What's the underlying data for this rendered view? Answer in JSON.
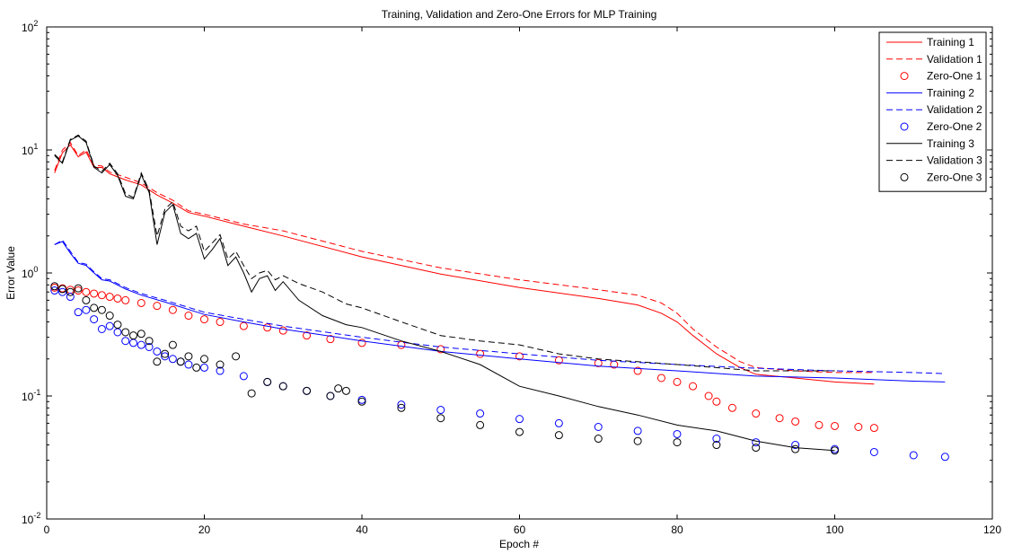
{
  "chart_data": {
    "type": "line",
    "title": "Training, Validation and Zero-One Errors for MLP Training",
    "xlabel": "Epoch #",
    "ylabel": "Error Value",
    "xlim": [
      0,
      120
    ],
    "ylim": [
      0.01,
      100
    ],
    "yscale": "log",
    "grid": false,
    "legend_position": "top-right",
    "x_ticks": [
      {
        "value": 0,
        "label": "0"
      },
      {
        "value": 20,
        "label": "20"
      },
      {
        "value": 40,
        "label": "40"
      },
      {
        "value": 60,
        "label": "60"
      },
      {
        "value": 80,
        "label": "80"
      },
      {
        "value": 100,
        "label": "100"
      },
      {
        "value": 120,
        "label": "120"
      }
    ],
    "y_ticks": [
      {
        "value": 0.01,
        "base": "10",
        "exp": "-2"
      },
      {
        "value": 0.1,
        "base": "10",
        "exp": "-1"
      },
      {
        "value": 1,
        "base": "10",
        "exp": "0"
      },
      {
        "value": 10,
        "base": "10",
        "exp": "1"
      },
      {
        "value": 100,
        "base": "10",
        "exp": "2"
      }
    ],
    "series": [
      {
        "name": "Training 1",
        "style": "solid",
        "color": "#ff0000",
        "x": [
          1,
          2,
          3,
          4,
          5,
          6,
          7,
          8,
          10,
          12,
          14,
          16,
          18,
          20,
          25,
          30,
          40,
          50,
          60,
          70,
          75,
          78,
          80,
          82,
          85,
          88,
          90,
          95,
          100,
          105
        ],
        "y": [
          6.5,
          9.5,
          11,
          8.8,
          9.6,
          7.2,
          7.2,
          6.4,
          5.7,
          5.2,
          4.3,
          3.7,
          3.1,
          2.9,
          2.4,
          2.0,
          1.35,
          0.98,
          0.76,
          0.62,
          0.55,
          0.47,
          0.4,
          0.31,
          0.22,
          0.17,
          0.15,
          0.14,
          0.13,
          0.125
        ]
      },
      {
        "name": "Validation 1",
        "style": "dashed",
        "color": "#ff0000",
        "x": [
          1,
          2,
          3,
          4,
          5,
          6,
          7,
          8,
          10,
          12,
          14,
          16,
          18,
          20,
          25,
          30,
          40,
          50,
          60,
          70,
          75,
          78,
          80,
          82,
          85,
          88,
          90,
          95,
          100,
          105
        ],
        "y": [
          6.8,
          10,
          11.5,
          9,
          10,
          7.5,
          7.4,
          6.6,
          6.0,
          5.4,
          4.5,
          3.9,
          3.2,
          3.0,
          2.5,
          2.2,
          1.5,
          1.1,
          0.88,
          0.73,
          0.66,
          0.57,
          0.47,
          0.35,
          0.25,
          0.19,
          0.17,
          0.16,
          0.155,
          0.155
        ]
      },
      {
        "name": "Zero-One 1",
        "style": "markers",
        "color": "#ff0000",
        "x": [
          1,
          2,
          3,
          4,
          5,
          6,
          7,
          8,
          9,
          10,
          12,
          14,
          16,
          18,
          20,
          22,
          25,
          28,
          30,
          33,
          36,
          40,
          45,
          50,
          55,
          60,
          65,
          70,
          72,
          75,
          78,
          80,
          82,
          84,
          85,
          87,
          90,
          93,
          95,
          98,
          100,
          103,
          105
        ],
        "y": [
          0.76,
          0.75,
          0.73,
          0.72,
          0.7,
          0.68,
          0.66,
          0.64,
          0.62,
          0.6,
          0.57,
          0.54,
          0.5,
          0.45,
          0.42,
          0.4,
          0.37,
          0.36,
          0.34,
          0.31,
          0.29,
          0.27,
          0.26,
          0.24,
          0.22,
          0.21,
          0.195,
          0.185,
          0.18,
          0.16,
          0.14,
          0.13,
          0.12,
          0.1,
          0.09,
          0.08,
          0.072,
          0.066,
          0.062,
          0.058,
          0.057,
          0.056,
          0.055
        ]
      },
      {
        "name": "Training 2",
        "style": "solid",
        "color": "#0000ff",
        "x": [
          1,
          2,
          3,
          4,
          5,
          6,
          7,
          8,
          10,
          12,
          15,
          20,
          25,
          30,
          40,
          50,
          60,
          70,
          80,
          90,
          100,
          110,
          114
        ],
        "y": [
          1.7,
          1.8,
          1.45,
          1.2,
          1.15,
          1.0,
          0.88,
          0.86,
          0.74,
          0.66,
          0.58,
          0.46,
          0.4,
          0.35,
          0.28,
          0.23,
          0.2,
          0.175,
          0.16,
          0.145,
          0.14,
          0.132,
          0.13
        ]
      },
      {
        "name": "Validation 2",
        "style": "dashed",
        "color": "#0000ff",
        "x": [
          1,
          2,
          3,
          4,
          5,
          6,
          7,
          8,
          10,
          12,
          15,
          20,
          25,
          30,
          40,
          50,
          60,
          70,
          80,
          90,
          100,
          110,
          114
        ],
        "y": [
          1.7,
          1.85,
          1.5,
          1.22,
          1.18,
          1.02,
          0.9,
          0.88,
          0.76,
          0.68,
          0.6,
          0.48,
          0.42,
          0.37,
          0.3,
          0.25,
          0.22,
          0.195,
          0.18,
          0.168,
          0.16,
          0.155,
          0.152
        ]
      },
      {
        "name": "Zero-One 2",
        "style": "markers",
        "color": "#0000ff",
        "x": [
          1,
          2,
          3,
          4,
          5,
          6,
          7,
          8,
          9,
          10,
          11,
          12,
          13,
          14,
          15,
          16,
          17,
          18,
          20,
          22,
          25,
          28,
          30,
          33,
          36,
          40,
          45,
          50,
          55,
          60,
          65,
          70,
          75,
          80,
          85,
          90,
          95,
          100,
          105,
          110,
          114
        ],
        "y": [
          0.72,
          0.7,
          0.64,
          0.48,
          0.5,
          0.42,
          0.35,
          0.37,
          0.33,
          0.28,
          0.27,
          0.26,
          0.25,
          0.23,
          0.21,
          0.2,
          0.19,
          0.18,
          0.17,
          0.16,
          0.145,
          0.13,
          0.12,
          0.11,
          0.1,
          0.093,
          0.085,
          0.077,
          0.072,
          0.065,
          0.06,
          0.056,
          0.052,
          0.049,
          0.045,
          0.042,
          0.04,
          0.037,
          0.035,
          0.033,
          0.032
        ]
      },
      {
        "name": "Training 3",
        "style": "solid",
        "color": "#000000",
        "x": [
          1,
          2,
          3,
          4,
          5,
          6,
          7,
          8,
          9,
          10,
          11,
          12,
          13,
          14,
          15,
          16,
          17,
          18,
          19,
          20,
          21,
          22,
          23,
          24,
          25,
          26,
          27,
          28,
          29,
          30,
          32,
          35,
          38,
          40,
          45,
          50,
          55,
          60,
          65,
          70,
          75,
          80,
          85,
          90,
          95,
          100
        ],
        "y": [
          9,
          7.8,
          12,
          13,
          11.5,
          7.2,
          6.5,
          7.6,
          6.2,
          4.2,
          4.0,
          6.3,
          4.5,
          1.7,
          3.1,
          3.6,
          2.1,
          1.9,
          2.1,
          1.3,
          1.55,
          1.9,
          1.15,
          1.35,
          1.0,
          0.7,
          0.9,
          0.95,
          0.72,
          0.85,
          0.6,
          0.45,
          0.38,
          0.36,
          0.28,
          0.23,
          0.18,
          0.12,
          0.1,
          0.082,
          0.07,
          0.058,
          0.052,
          0.043,
          0.038,
          0.036
        ]
      },
      {
        "name": "Validation 3",
        "style": "dashed",
        "color": "#000000",
        "x": [
          1,
          2,
          3,
          4,
          5,
          6,
          7,
          8,
          9,
          10,
          11,
          12,
          13,
          14,
          15,
          16,
          17,
          18,
          19,
          20,
          21,
          22,
          23,
          24,
          25,
          26,
          27,
          28,
          29,
          30,
          32,
          35,
          38,
          40,
          45,
          50,
          55,
          60,
          65,
          70,
          75,
          80,
          85,
          90,
          95,
          100
        ],
        "y": [
          9.2,
          8,
          12.2,
          13.2,
          11.8,
          7.4,
          6.7,
          7.8,
          6.4,
          4.4,
          4.1,
          6.5,
          4.7,
          2.0,
          3.3,
          3.8,
          2.4,
          2.2,
          2.4,
          1.5,
          1.75,
          2.05,
          1.3,
          1.5,
          1.15,
          0.9,
          1.0,
          1.05,
          0.88,
          0.95,
          0.82,
          0.7,
          0.56,
          0.52,
          0.4,
          0.31,
          0.28,
          0.26,
          0.22,
          0.2,
          0.19,
          0.18,
          0.17,
          0.16,
          0.16,
          0.16
        ]
      },
      {
        "name": "Zero-One 3",
        "style": "markers",
        "color": "#000000",
        "x": [
          1,
          2,
          3,
          4,
          5,
          6,
          7,
          8,
          9,
          10,
          11,
          12,
          13,
          14,
          15,
          16,
          17,
          18,
          19,
          20,
          22,
          24,
          26,
          28,
          30,
          33,
          36,
          37,
          38,
          40,
          45,
          50,
          55,
          60,
          65,
          70,
          75,
          80,
          85,
          90,
          95,
          100
        ],
        "y": [
          0.78,
          0.74,
          0.7,
          0.75,
          0.6,
          0.52,
          0.5,
          0.45,
          0.38,
          0.33,
          0.31,
          0.32,
          0.28,
          0.19,
          0.22,
          0.26,
          0.19,
          0.21,
          0.17,
          0.2,
          0.18,
          0.21,
          0.105,
          0.13,
          0.12,
          0.11,
          0.1,
          0.115,
          0.11,
          0.09,
          0.08,
          0.066,
          0.058,
          0.051,
          0.048,
          0.045,
          0.043,
          0.042,
          0.04,
          0.038,
          0.037,
          0.036
        ]
      }
    ]
  }
}
